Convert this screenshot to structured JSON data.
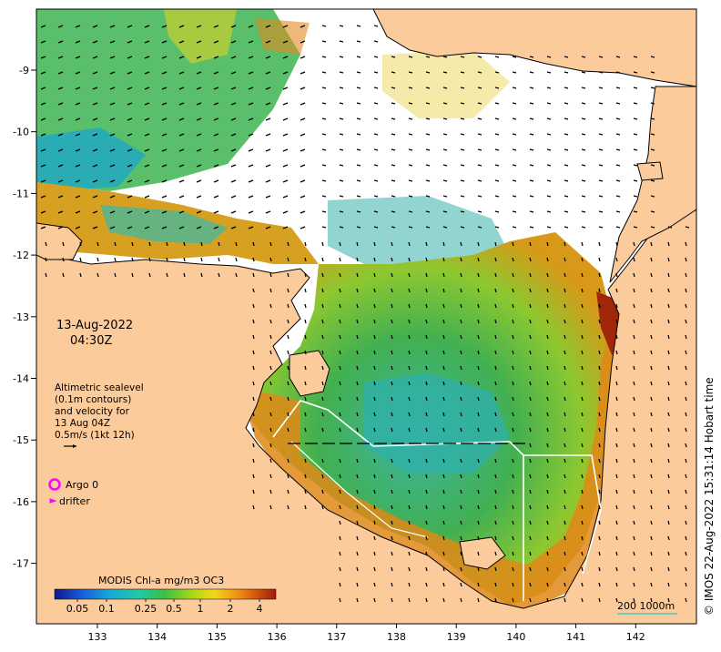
{
  "map": {
    "date": "13-Aug-2022",
    "time": "04:30Z",
    "legend_lines": [
      "Altimetric sealevel",
      "(0.1m contours)",
      "and velocity for",
      "13 Aug 04Z",
      "0.5m/s (1kt 12h)"
    ],
    "argo_label": "Argo 0",
    "drifter_label": "drifter",
    "colorbar_title": "MODIS Chl-a mg/m3 OC3",
    "colorbar_ticks": [
      "0.05",
      "0.1",
      "0.25",
      "0.5",
      "1",
      "2",
      "4"
    ],
    "lon_ticks": [
      "133",
      "134",
      "135",
      "136",
      "137",
      "138",
      "139",
      "140",
      "141",
      "142"
    ],
    "lat_ticks": [
      "-9",
      "-10",
      "-11",
      "-12",
      "-13",
      "-14",
      "-15",
      "-16",
      "-17"
    ],
    "scale_label": "200  1000m",
    "credit": "© IMOS 22-Aug-2022 15:31:14 Hobart time",
    "colors": {
      "land": "#fbcb9b",
      "ocean_nodata": "#ffffff",
      "argo": "#ff00ff",
      "drifter": "#ff00ff",
      "contour": "#ffffff",
      "chl_low": "#30a8b8",
      "chl_mid": "#3cb24a",
      "chl_high": "#e08a10",
      "chl_max": "#a82808"
    }
  }
}
